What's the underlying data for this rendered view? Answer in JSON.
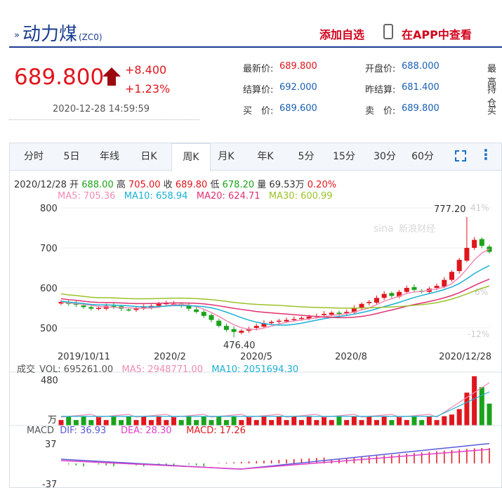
{
  "header": {
    "title": "动力煤",
    "code": "(ZC0)",
    "add_favorite": "添加自选",
    "app_view": "在APP中查看"
  },
  "quote": {
    "price": "689.800",
    "change_abs": "+8.400",
    "change_pct": "+1.23%",
    "timestamp": "2020-12-28 14:59:59",
    "fields": [
      {
        "label": "最新价:",
        "value": "689.800",
        "color": "red"
      },
      {
        "label": "结算价:",
        "value": "692.000",
        "color": "blue"
      },
      {
        "label": "买　价:",
        "value": "689.600",
        "color": "blue"
      },
      {
        "label": "开盘价:",
        "value": "688.000",
        "color": "blue"
      },
      {
        "label": "昨结算:",
        "value": "681.400",
        "color": "blue"
      },
      {
        "label": "卖　价:",
        "value": "689.800",
        "color": "blue"
      },
      {
        "label": "最高",
        "value": "",
        "color": "red"
      },
      {
        "label": "持仓",
        "value": "",
        "color": "blue"
      },
      {
        "label": "买",
        "value": "",
        "color": "blue"
      }
    ]
  },
  "tabs": [
    "分时",
    "5日",
    "年线",
    "日K",
    "周K",
    "月K",
    "年K",
    "5分",
    "15分",
    "30分",
    "60分"
  ],
  "active_tab": "周K",
  "kline_info": {
    "date": "2020/12/28",
    "open_label": "开",
    "open": "688.00",
    "high_label": "高",
    "high": "705.00",
    "close_label": "收",
    "close": "689.80",
    "low_label": "低",
    "low": "678.20",
    "vol_label": "量",
    "vol": "69.53万",
    "pct": "0.20%",
    "ma5": "MA5: 705.36",
    "ma10": "MA10: 658.94",
    "ma20": "MA20: 624.71",
    "ma30": "MA30: 600.99"
  },
  "volume_info": {
    "label": "成交",
    "vol": "VOL: 695261.00",
    "ma5": "MA5: 2948771.00",
    "ma10": "MA10: 2051694.30"
  },
  "macd_info": {
    "label": "MACD",
    "dif": "DIF: 36.93",
    "dea": "DEA: 28.30",
    "macd": "MACD: 17.26"
  },
  "colors": {
    "up": "#e0161d",
    "down": "#1aa31a",
    "ma5": "#f08cb4",
    "ma10": "#1ab1d4",
    "ma20": "#e0306e",
    "ma30": "#9bc229",
    "dif": "#5a5ad8",
    "dea": "#e040c8"
  },
  "chart_data": {
    "type": "candlestick",
    "y_ticks": [
      "800",
      "700",
      "600",
      "500"
    ],
    "ylim": [
      476.4,
      800
    ],
    "pct_ticks": [
      "41%",
      "6%",
      "-12%"
    ],
    "x_ticks": [
      "2019/10/11",
      "2020/2",
      "2020/5",
      "2020/8",
      "2020/12/28"
    ],
    "max_label": "777.20",
    "min_label": "476.40",
    "watermark": "新浪财经",
    "vol_axis": [
      "480",
      "万"
    ],
    "macd_axis": [
      "37",
      "-37"
    ]
  }
}
